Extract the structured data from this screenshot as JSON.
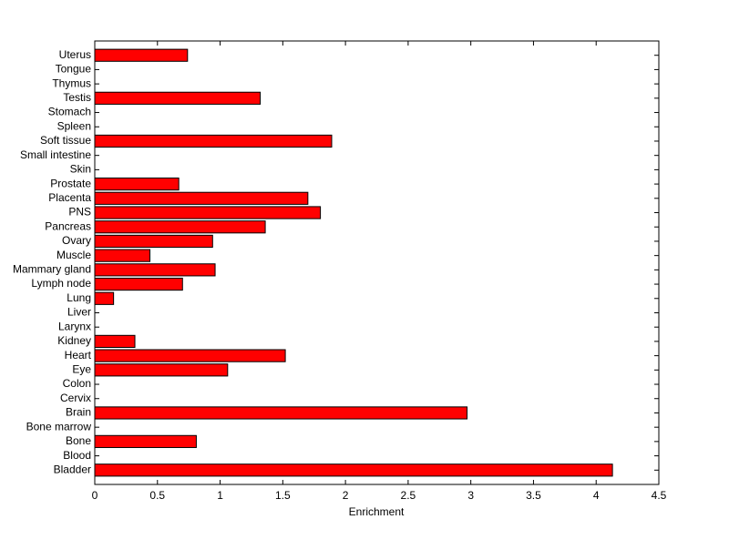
{
  "chart_data": {
    "type": "barh",
    "xlabel": "Enrichment",
    "categories": [
      "Bladder",
      "Blood",
      "Bone",
      "Bone marrow",
      "Brain",
      "Cervix",
      "Colon",
      "Eye",
      "Heart",
      "Kidney",
      "Larynx",
      "Liver",
      "Lung",
      "Lymph node",
      "Mammary gland",
      "Muscle",
      "Ovary",
      "Pancreas",
      "PNS",
      "Placenta",
      "Prostate",
      "Skin",
      "Small intestine",
      "Soft tissue",
      "Spleen",
      "Stomach",
      "Testis",
      "Thymus",
      "Tongue",
      "Uterus"
    ],
    "values": [
      4.13,
      0,
      0.81,
      0,
      2.97,
      0,
      0,
      1.06,
      1.52,
      0.32,
      0,
      0,
      0.15,
      0.7,
      0.96,
      0.44,
      0.94,
      1.36,
      1.8,
      1.7,
      0.67,
      0,
      0,
      1.89,
      0,
      0,
      1.32,
      0,
      0,
      0.74
    ],
    "color": "#ff0000",
    "xlim": [
      0,
      4.5
    ],
    "xticks": [
      0,
      0.5,
      1,
      1.5,
      2,
      2.5,
      3,
      3.5,
      4,
      4.5
    ]
  }
}
